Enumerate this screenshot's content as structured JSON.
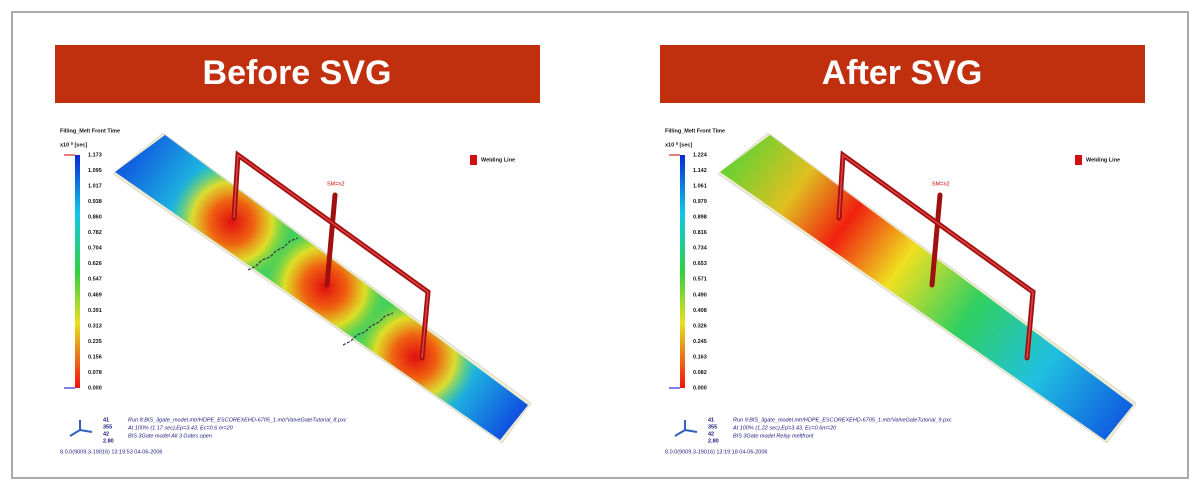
{
  "panels": [
    {
      "title": "Before SVG",
      "legend_title": "Filling_Melt Front Time",
      "unit": "x10 ⁰ [sec]",
      "scale": [
        "1.173",
        "1.095",
        "1.017",
        "0.938",
        "0.860",
        "0.782",
        "0.704",
        "0.626",
        "0.547",
        "0.469",
        "0.391",
        "0.313",
        "0.235",
        "0.156",
        "0.078",
        "0.000"
      ],
      "legend_item": "Welding Line",
      "gate_label": "SM=n2",
      "axis": [
        "41",
        "355",
        "42",
        "2.80"
      ],
      "footer": [
        "Run 8:BIS_3gate_model.mtr/HDPE_ESCOREXEHD-6705_1.mtr/ValveGateTutorial_8.pxc",
        "At 100% (1.17 sec),Ep=3.43, Ec=0.6 m=20",
        "BIS 3Gate model   All 3 Gates open"
      ],
      "version": "8.0.0(9009.3-19016) 13:19:53 04-06-2006"
    },
    {
      "title": "After SVG",
      "legend_title": "Filling_Melt Front Time",
      "unit": "x10 ⁰ [sec]",
      "scale": [
        "1.224",
        "1.142",
        "1.061",
        "0.979",
        "0.898",
        "0.816",
        "0.734",
        "0.653",
        "0.571",
        "0.490",
        "0.408",
        "0.326",
        "0.245",
        "0.163",
        "0.082",
        "0.000"
      ],
      "legend_item": "Welding Line",
      "gate_label": "SM=n2",
      "axis": [
        "41",
        "355",
        "42",
        "2.80"
      ],
      "footer": [
        "Run 9:BIS_3gate_model.mtr/HDPE_ESCOREXEHD-6705_1.mtr/ValveGateTutorial_9.pxc",
        "At 100% (1.22 sec),Ep=3.43, Ec=0.6m=20",
        "BIS 3Gate model   Relay meltfront"
      ],
      "version": "8.0.0(9009.3-19016) 13:19:18 04-06-2006"
    }
  ]
}
